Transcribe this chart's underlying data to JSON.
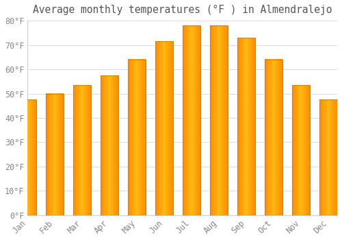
{
  "title": "Average monthly temperatures (°F ) in Almendralejo",
  "months": [
    "Jan",
    "Feb",
    "Mar",
    "Apr",
    "May",
    "Jun",
    "Jul",
    "Aug",
    "Sep",
    "Oct",
    "Nov",
    "Dec"
  ],
  "values": [
    47.5,
    50.0,
    53.5,
    57.5,
    64.0,
    71.5,
    78.0,
    78.0,
    73.0,
    64.0,
    53.5,
    47.5
  ],
  "bar_color_center": "#FFD966",
  "bar_color_edge": "#FFA500",
  "bar_edge_color": "#CC8800",
  "ylim": [
    0,
    80
  ],
  "yticks": [
    0,
    10,
    20,
    30,
    40,
    50,
    60,
    70,
    80
  ],
  "background_color": "#FFFFFF",
  "plot_bg_color": "#FFFFFF",
  "grid_color": "#DDDDDD",
  "title_fontsize": 10.5,
  "tick_fontsize": 8.5,
  "tick_color": "#888888",
  "title_color": "#555555"
}
